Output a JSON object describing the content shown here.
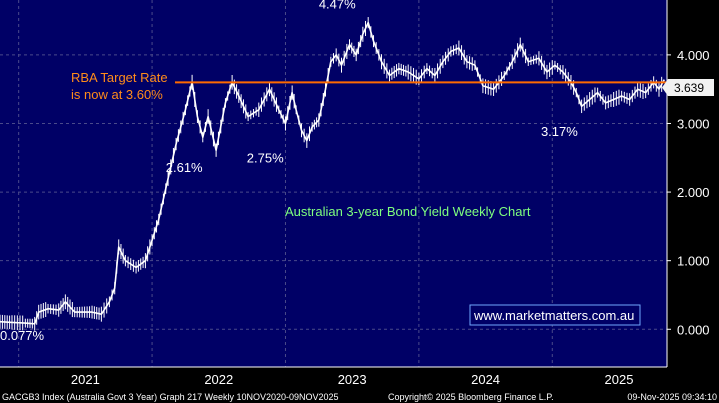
{
  "chart_data": {
    "type": "line",
    "title": "Australian 3-year Bond Yield Weekly Chart",
    "xlabel": "",
    "ylabel": "",
    "x_tick_labels": [
      "2021",
      "2022",
      "2023",
      "2024",
      "2025"
    ],
    "y_tick_labels": [
      "0.000",
      "1.000",
      "2.000",
      "3.000",
      "4.000"
    ],
    "ylim": [
      -0.55,
      4.8
    ],
    "xlim": [
      2020.86,
      2025.86
    ],
    "grid": true,
    "reference_line": {
      "value": 3.6,
      "label_line1": "RBA Target Rate",
      "label_line2": "is now at 3.60%",
      "color": "#ff6a00"
    },
    "current_value_label": "3.639",
    "current_value": 3.639,
    "annotations": [
      {
        "text": "4.47%",
        "x": 2023.4,
        "y": 4.47
      },
      {
        "text": "2.61%",
        "x": 2022.2,
        "y": 2.61
      },
      {
        "text": "2.75%",
        "x": 2022.8,
        "y": 2.75
      },
      {
        "text": "0.077%",
        "x": 2020.95,
        "y": 0.077
      },
      {
        "text": "3.17%",
        "x": 2025.05,
        "y": 3.17
      }
    ],
    "watermark": "www.marketmatters.com.au",
    "series": [
      {
        "color": "#ffffff",
        "points": [
          [
            2020.86,
            0.11
          ],
          [
            2020.95,
            0.1
          ],
          [
            2021.05,
            0.09
          ],
          [
            2021.12,
            0.08
          ],
          [
            2021.15,
            0.25
          ],
          [
            2021.22,
            0.3
          ],
          [
            2021.3,
            0.28
          ],
          [
            2021.35,
            0.4
          ],
          [
            2021.42,
            0.25
          ],
          [
            2021.55,
            0.25
          ],
          [
            2021.62,
            0.22
          ],
          [
            2021.68,
            0.4
          ],
          [
            2021.72,
            0.6
          ],
          [
            2021.75,
            1.2
          ],
          [
            2021.8,
            1.0
          ],
          [
            2021.88,
            0.9
          ],
          [
            2021.95,
            1.0
          ],
          [
            2022.0,
            1.3
          ],
          [
            2022.05,
            1.6
          ],
          [
            2022.12,
            2.2
          ],
          [
            2022.18,
            2.7
          ],
          [
            2022.25,
            3.2
          ],
          [
            2022.3,
            3.6
          ],
          [
            2022.34,
            3.1
          ],
          [
            2022.38,
            2.8
          ],
          [
            2022.42,
            3.1
          ],
          [
            2022.48,
            2.61
          ],
          [
            2022.55,
            3.3
          ],
          [
            2022.6,
            3.6
          ],
          [
            2022.65,
            3.4
          ],
          [
            2022.72,
            3.1
          ],
          [
            2022.8,
            3.2
          ],
          [
            2022.88,
            3.5
          ],
          [
            2022.95,
            3.2
          ],
          [
            2023.0,
            3.0
          ],
          [
            2023.05,
            3.45
          ],
          [
            2023.08,
            3.2
          ],
          [
            2023.12,
            2.9
          ],
          [
            2023.16,
            2.75
          ],
          [
            2023.2,
            2.95
          ],
          [
            2023.25,
            3.05
          ],
          [
            2023.3,
            3.5
          ],
          [
            2023.34,
            3.9
          ],
          [
            2023.38,
            4.0
          ],
          [
            2023.42,
            3.85
          ],
          [
            2023.48,
            4.15
          ],
          [
            2023.53,
            4.0
          ],
          [
            2023.58,
            4.3
          ],
          [
            2023.62,
            4.47
          ],
          [
            2023.66,
            4.2
          ],
          [
            2023.72,
            3.9
          ],
          [
            2023.78,
            3.7
          ],
          [
            2023.85,
            3.8
          ],
          [
            2023.92,
            3.75
          ],
          [
            2024.0,
            3.65
          ],
          [
            2024.06,
            3.8
          ],
          [
            2024.12,
            3.7
          ],
          [
            2024.18,
            3.9
          ],
          [
            2024.24,
            4.05
          ],
          [
            2024.3,
            4.1
          ],
          [
            2024.36,
            3.9
          ],
          [
            2024.42,
            3.85
          ],
          [
            2024.48,
            3.55
          ],
          [
            2024.56,
            3.5
          ],
          [
            2024.64,
            3.7
          ],
          [
            2024.7,
            3.9
          ],
          [
            2024.76,
            4.15
          ],
          [
            2024.82,
            3.9
          ],
          [
            2024.9,
            3.95
          ],
          [
            2024.96,
            3.75
          ],
          [
            2025.02,
            3.85
          ],
          [
            2025.08,
            3.75
          ],
          [
            2025.14,
            3.6
          ],
          [
            2025.18,
            3.45
          ],
          [
            2025.22,
            3.25
          ],
          [
            2025.28,
            3.35
          ],
          [
            2025.34,
            3.45
          ],
          [
            2025.4,
            3.3
          ],
          [
            2025.46,
            3.35
          ],
          [
            2025.52,
            3.4
          ],
          [
            2025.58,
            3.35
          ],
          [
            2025.64,
            3.5
          ],
          [
            2025.7,
            3.45
          ],
          [
            2025.76,
            3.6
          ],
          [
            2025.8,
            3.5
          ],
          [
            2025.84,
            3.64
          ]
        ]
      }
    ]
  },
  "footer": {
    "left": "GACGB3 Index (Australia Govt 3 Year) Graph 217 Weekly 10NOV2020-09NOV2025",
    "center": "Copyright© 2025 Bloomberg Finance L.P.",
    "right": "09-Nov-2025 09:34:10"
  },
  "colors": {
    "background": "#000000",
    "plot_background": "#000066",
    "price": "#ffffff",
    "reference_line": "#ff6a00",
    "grid": "#4a4a8a",
    "subtitle": "#7fff7f",
    "current_label_bg": "#f2f2f2"
  }
}
